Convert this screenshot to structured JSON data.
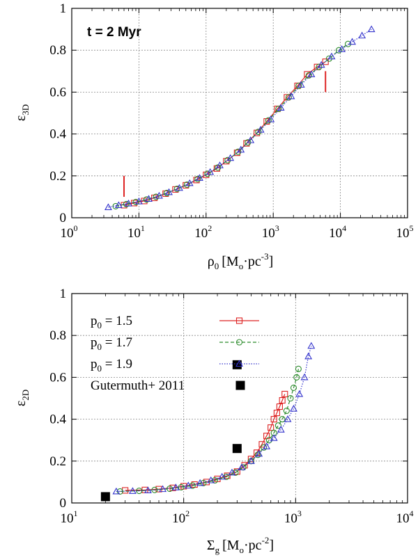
{
  "chart_data": [
    {
      "type": "line",
      "annotation": "t = 2 Myr",
      "xlabel": {
        "symbol": "ρ",
        "sub": "0",
        "unit_pre": "[M",
        "unit_sub": "o",
        "unit_mid": "·pc",
        "unit_sup": "-3",
        "unit_post": "]"
      },
      "ylabel": {
        "symbol": "ε",
        "sub": "3D"
      },
      "xscale": "log",
      "xlim": [
        1,
        100000
      ],
      "ylim": [
        0,
        1
      ],
      "xticks": [
        {
          "base": "10",
          "exp": "0",
          "value": 1
        },
        {
          "base": "10",
          "exp": "1",
          "value": 10
        },
        {
          "base": "10",
          "exp": "2",
          "value": 100
        },
        {
          "base": "10",
          "exp": "3",
          "value": 1000
        },
        {
          "base": "10",
          "exp": "4",
          "value": 10000
        },
        {
          "base": "10",
          "exp": "5",
          "value": 100000
        }
      ],
      "yticks": [
        "0",
        "0.2",
        "0.4",
        "0.6",
        "0.8",
        "1"
      ],
      "grid": true,
      "series": [
        {
          "name": "p0 = 1.5",
          "color": "#dd2222",
          "marker": "square",
          "style": "solid",
          "x": [
            6,
            8.5,
            12,
            17,
            25,
            35,
            50,
            72,
            100,
            145,
            200,
            290,
            400,
            570,
            800,
            1150,
            1600,
            2300,
            3200,
            4500,
            6000
          ],
          "y": [
            0.06,
            0.07,
            0.08,
            0.095,
            0.115,
            0.135,
            0.155,
            0.18,
            0.205,
            0.235,
            0.27,
            0.31,
            0.355,
            0.405,
            0.46,
            0.52,
            0.575,
            0.63,
            0.685,
            0.72,
            0.745
          ]
        },
        {
          "name": "p0 = 1.7",
          "color": "#2a8a2a",
          "marker": "circle",
          "style": "dashed",
          "x": [
            4.5,
            6.5,
            9,
            13,
            18,
            26,
            37,
            52,
            75,
            105,
            150,
            210,
            300,
            420,
            600,
            850,
            1200,
            1700,
            2400,
            3400,
            4800,
            6800,
            9500,
            13000
          ],
          "y": [
            0.055,
            0.065,
            0.075,
            0.087,
            0.1,
            0.118,
            0.138,
            0.158,
            0.185,
            0.21,
            0.24,
            0.275,
            0.315,
            0.36,
            0.41,
            0.465,
            0.52,
            0.575,
            0.63,
            0.68,
            0.72,
            0.76,
            0.8,
            0.83
          ]
        },
        {
          "name": "p0 = 1.9",
          "color": "#3333cc",
          "marker": "triangle",
          "style": "dotted",
          "x": [
            3.5,
            5,
            7,
            10,
            14,
            20,
            28,
            40,
            57,
            80,
            115,
            160,
            230,
            330,
            460,
            650,
            920,
            1300,
            1850,
            2600,
            3700,
            5200,
            7400,
            10500,
            15000,
            21000,
            29000
          ],
          "y": [
            0.05,
            0.06,
            0.068,
            0.078,
            0.09,
            0.105,
            0.122,
            0.142,
            0.165,
            0.19,
            0.218,
            0.25,
            0.285,
            0.325,
            0.37,
            0.42,
            0.47,
            0.525,
            0.58,
            0.635,
            0.685,
            0.73,
            0.77,
            0.805,
            0.84,
            0.87,
            0.9
          ]
        }
      ],
      "markers_vertical": [
        {
          "x": 6,
          "y_from": 0.1,
          "y_to": 0.2,
          "color": "#dd2222"
        },
        {
          "x": 6000,
          "y_from": 0.6,
          "y_to": 0.7,
          "color": "#dd2222"
        }
      ]
    },
    {
      "type": "line",
      "xlabel": {
        "symbol": "Σ",
        "sub": "g",
        "unit_pre": "[M",
        "unit_sub": "o",
        "unit_mid": "·pc",
        "unit_sup": "-2",
        "unit_post": "]"
      },
      "ylabel": {
        "symbol": "ε",
        "sub": "2D"
      },
      "xscale": "log",
      "xlim": [
        10,
        10000
      ],
      "ylim": [
        0,
        1
      ],
      "xticks": [
        {
          "base": "10",
          "exp": "1",
          "value": 10
        },
        {
          "base": "10",
          "exp": "2",
          "value": 100
        },
        {
          "base": "10",
          "exp": "3",
          "value": 1000
        },
        {
          "base": "10",
          "exp": "4",
          "value": 10000
        }
      ],
      "yticks": [
        "0",
        "0.2",
        "0.4",
        "0.6",
        "0.8",
        "1"
      ],
      "grid": true,
      "legend_position": "top-left",
      "legend": [
        {
          "pre": "p",
          "sub": "0",
          "post": " = 1.5",
          "color": "#dd2222",
          "marker": "square",
          "style": "solid"
        },
        {
          "pre": "p",
          "sub": "0",
          "post": " = 1.7",
          "color": "#2a8a2a",
          "marker": "circle",
          "style": "dashed"
        },
        {
          "pre": "p",
          "sub": "0",
          "post": " = 1.9",
          "color": "#3333cc",
          "marker": "triangle",
          "style": "dotted"
        },
        {
          "pre": "Gutermuth+ 2011",
          "sub": "",
          "post": "",
          "color": "#000000",
          "marker": "filled-square",
          "style": "none"
        }
      ],
      "series": [
        {
          "name": "p0 = 1.5",
          "color": "#dd2222",
          "marker": "square",
          "style": "solid",
          "x": [
            30,
            45,
            60,
            80,
            100,
            125,
            160,
            200,
            245,
            300,
            350,
            400,
            450,
            500,
            550,
            600,
            640,
            680,
            720,
            760,
            800
          ],
          "y": [
            0.06,
            0.062,
            0.066,
            0.072,
            0.08,
            0.088,
            0.1,
            0.115,
            0.13,
            0.15,
            0.18,
            0.21,
            0.24,
            0.28,
            0.32,
            0.36,
            0.4,
            0.43,
            0.46,
            0.49,
            0.52
          ]
        },
        {
          "name": "p0 = 1.7",
          "color": "#2a8a2a",
          "marker": "circle",
          "style": "dashed",
          "x": [
            27,
            40,
            55,
            75,
            95,
            120,
            150,
            190,
            240,
            290,
            340,
            400,
            460,
            520,
            580,
            640,
            700,
            760,
            830,
            900,
            960,
            1020,
            1060
          ],
          "y": [
            0.055,
            0.058,
            0.062,
            0.068,
            0.075,
            0.083,
            0.095,
            0.108,
            0.125,
            0.145,
            0.17,
            0.2,
            0.23,
            0.265,
            0.3,
            0.335,
            0.37,
            0.4,
            0.44,
            0.5,
            0.55,
            0.6,
            0.64
          ]
        },
        {
          "name": "p0 = 1.9",
          "color": "#3333cc",
          "marker": "triangle",
          "style": "dotted",
          "x": [
            25,
            35,
            48,
            65,
            85,
            110,
            140,
            175,
            220,
            270,
            330,
            400,
            470,
            550,
            640,
            740,
            850,
            960,
            1080,
            1200,
            1300,
            1380
          ],
          "y": [
            0.055,
            0.057,
            0.06,
            0.066,
            0.074,
            0.083,
            0.095,
            0.108,
            0.125,
            0.145,
            0.17,
            0.2,
            0.235,
            0.27,
            0.31,
            0.35,
            0.4,
            0.45,
            0.52,
            0.6,
            0.7,
            0.75
          ]
        },
        {
          "name": "Gutermuth+ 2011",
          "color": "#000000",
          "marker": "filled-square",
          "style": "none",
          "x": [
            20,
            300,
            300
          ],
          "y": [
            0.03,
            0.26,
            0.66
          ]
        }
      ]
    }
  ]
}
